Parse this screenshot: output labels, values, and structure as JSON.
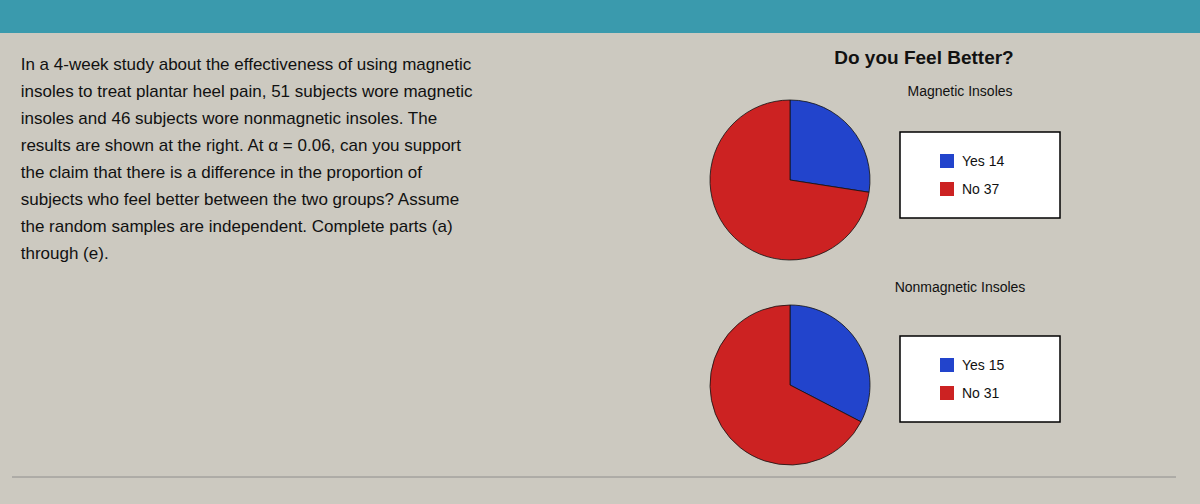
{
  "title": "Do you Feel Better?",
  "text": " In a 4-week study about the effectiveness of using magnetic\n insoles to treat plantar heel pain, 51 subjects wore magnetic\n insoles and 46 subjects wore nonmagnetic insoles. The\n results are shown at the right. At α = 0.06, can you support\n the claim that there is a difference in the proportion of\n subjects who feel better between the two groups? Assume\n the random samples are independent. Complete parts (a)\n through (e).",
  "chart_data": [
    {
      "type": "pie",
      "title": "Magnetic Insoles",
      "categories": [
        "Yes 14",
        "No 37"
      ],
      "values": [
        14,
        37
      ],
      "colors": [
        "#2244cc",
        "#cc2222"
      ]
    },
    {
      "type": "pie",
      "title": "Nonmagnetic Insoles",
      "categories": [
        "Yes 15",
        "No 31"
      ],
      "values": [
        15,
        31
      ],
      "colors": [
        "#2244cc",
        "#cc2222"
      ]
    }
  ]
}
